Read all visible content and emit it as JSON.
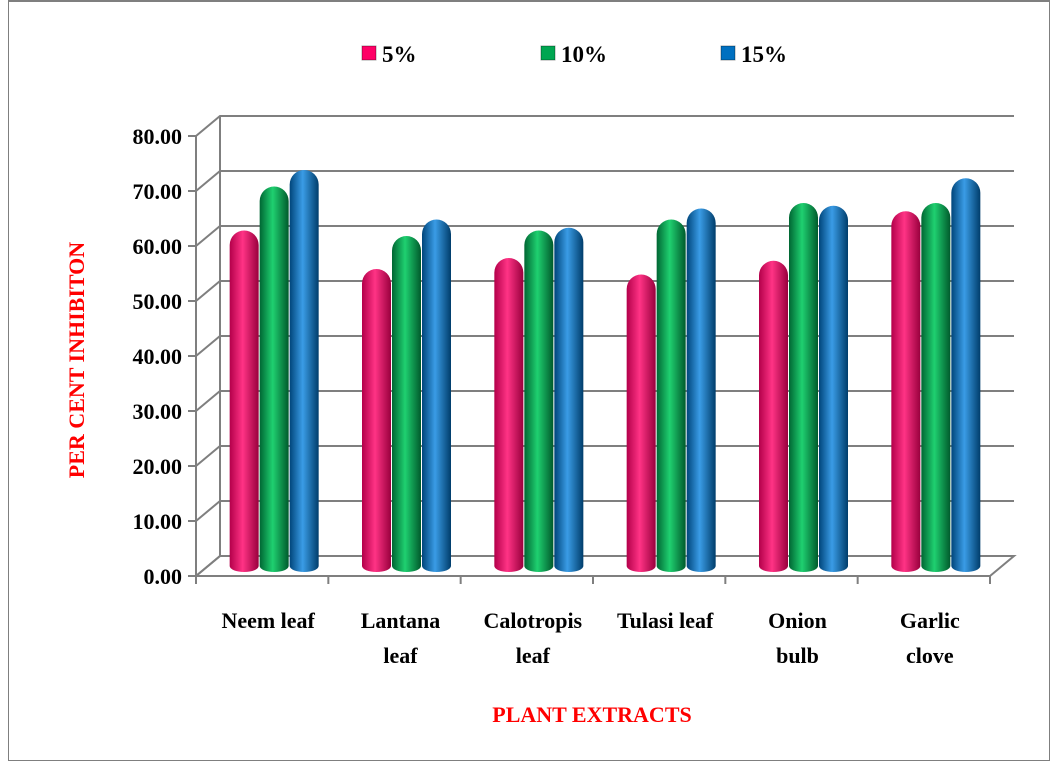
{
  "chart_data": {
    "type": "bar",
    "title": "",
    "xlabel": "PLANT EXTRACTS",
    "ylabel": "PER CENT INHIBITON",
    "ylim": [
      0,
      80
    ],
    "yticks": [
      "0.00",
      "10.00",
      "20.00",
      "30.00",
      "40.00",
      "50.00",
      "60.00",
      "70.00",
      "80.00"
    ],
    "categories": [
      [
        "Neem leaf"
      ],
      [
        "Lantana",
        "leaf"
      ],
      [
        "Calotropis",
        "leaf"
      ],
      [
        "Tulasi leaf"
      ],
      [
        "Onion",
        "bulb"
      ],
      [
        "Garlic",
        "clove"
      ]
    ],
    "series": [
      {
        "name": "5%",
        "color": "#ff0066",
        "values": [
          61.0,
          54.0,
          56.0,
          53.0,
          55.5,
          64.5
        ]
      },
      {
        "name": "10%",
        "color": "#00a651",
        "values": [
          69.0,
          60.0,
          61.0,
          63.0,
          66.0,
          66.0
        ]
      },
      {
        "name": "15%",
        "color": "#0070c0",
        "values": [
          72.0,
          63.0,
          61.5,
          65.0,
          65.5,
          70.5
        ]
      }
    ],
    "grid": true,
    "legend_position": "top"
  }
}
